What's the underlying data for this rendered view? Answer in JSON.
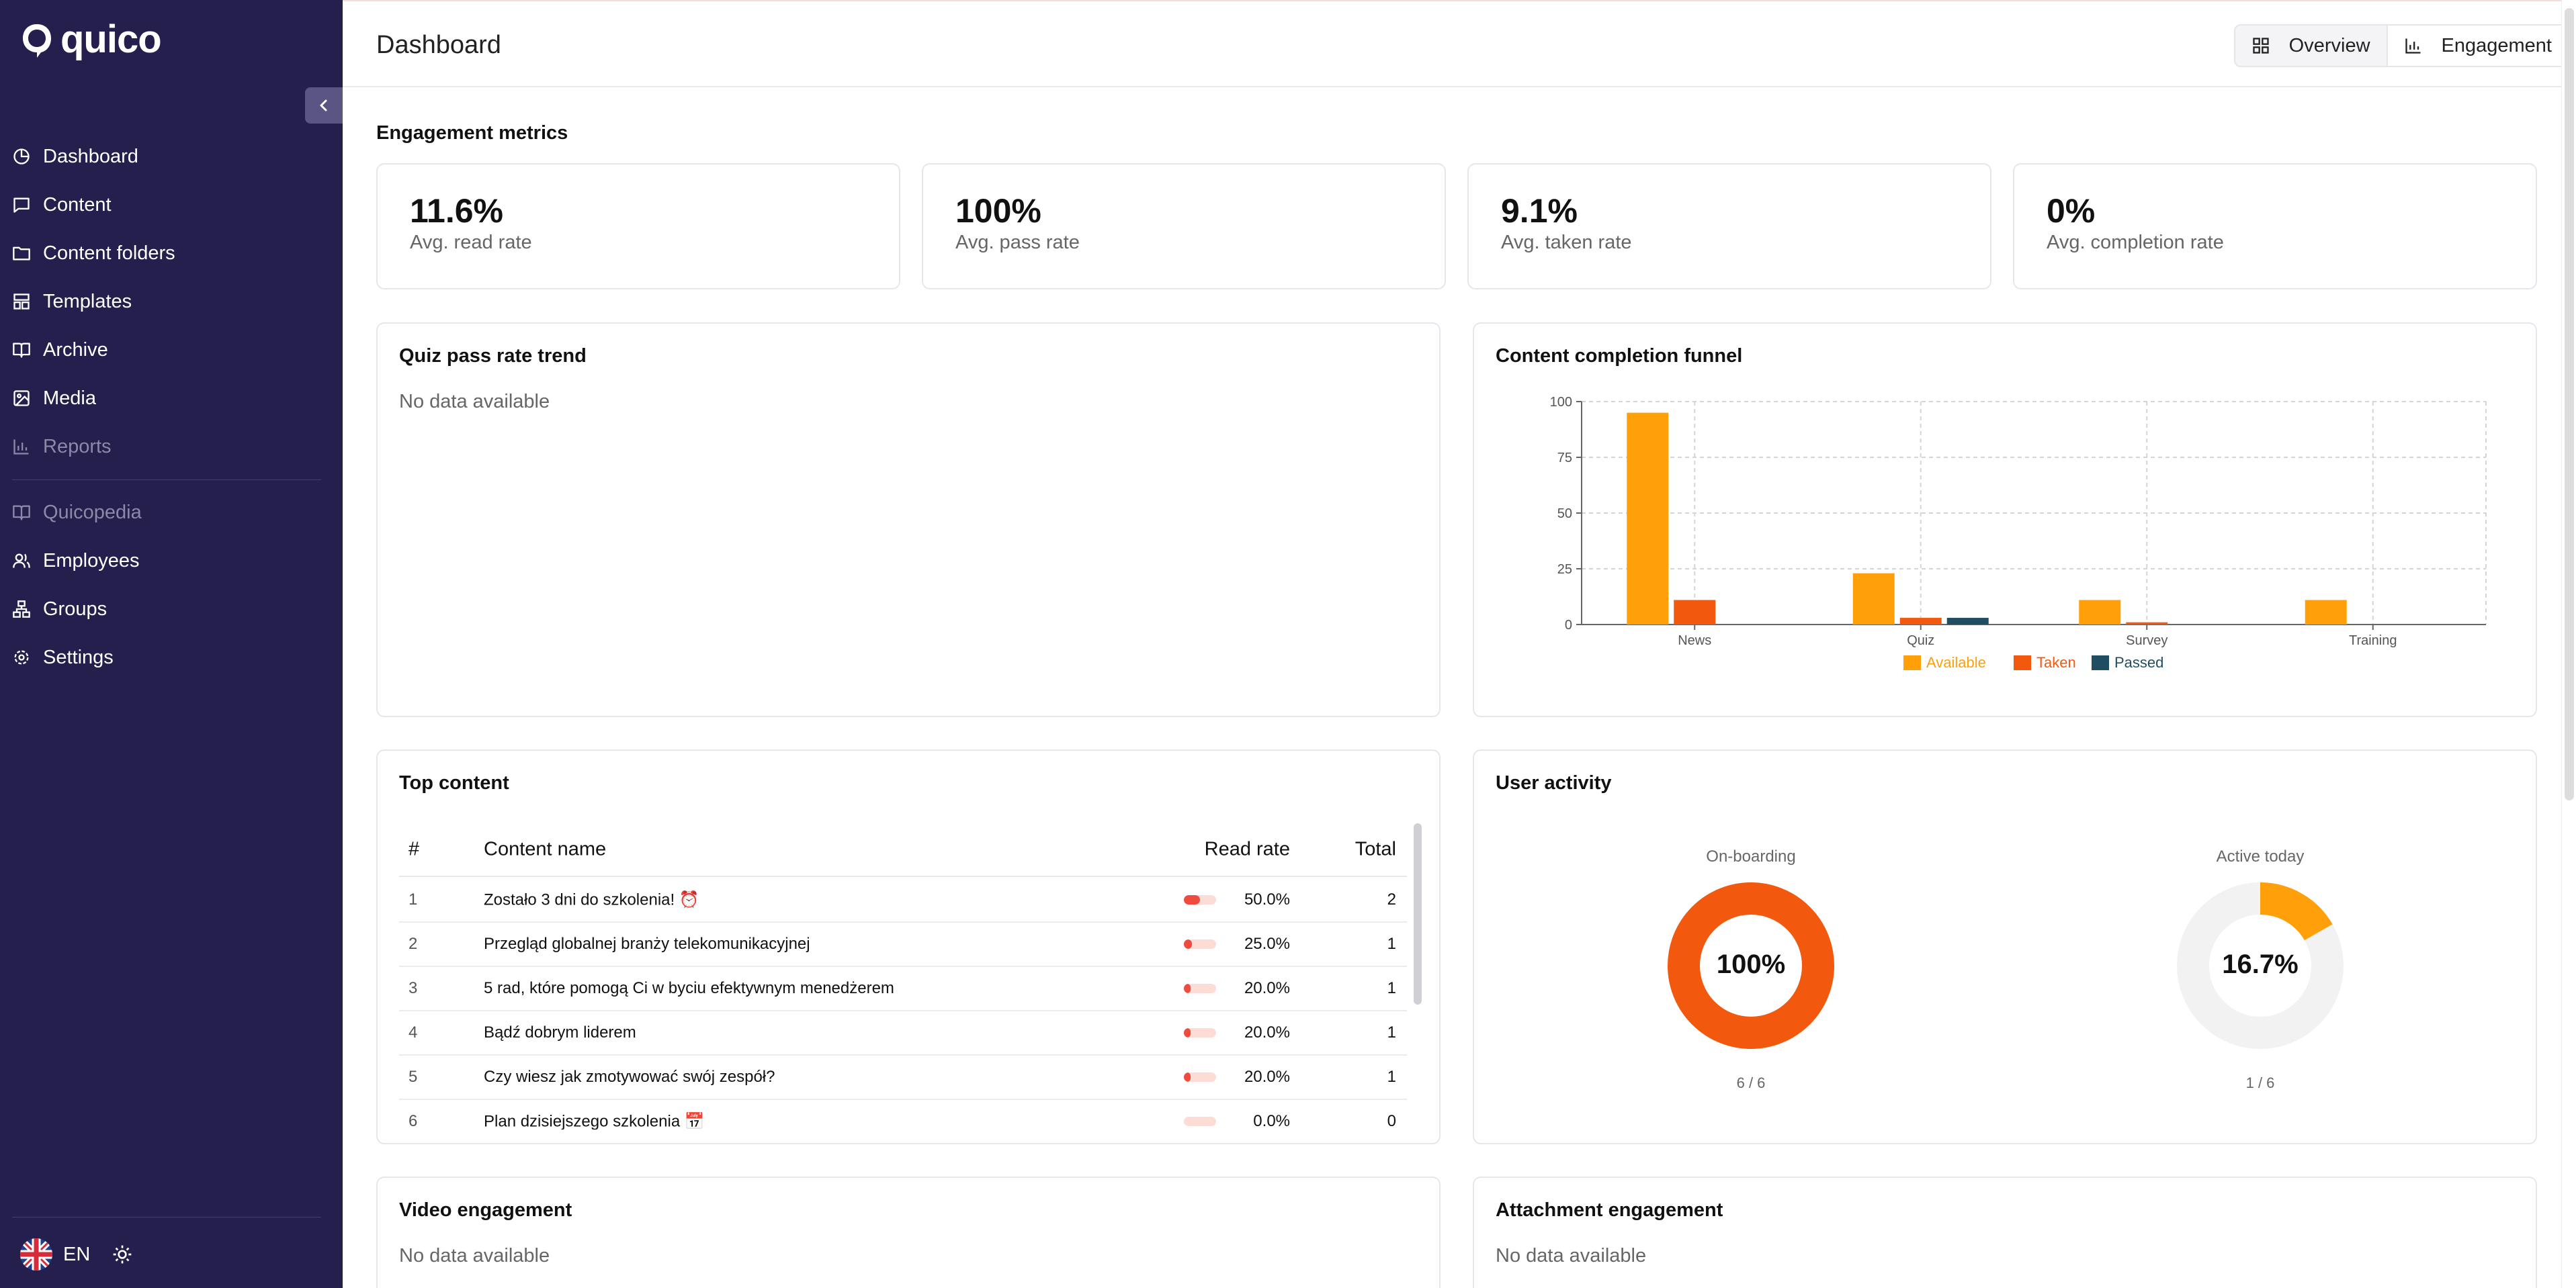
{
  "app": {
    "name": "quico"
  },
  "sidebar": {
    "items": [
      {
        "label": "Dashboard",
        "icon": "dashboard-icon"
      },
      {
        "label": "Content",
        "icon": "message-icon"
      },
      {
        "label": "Content folders",
        "icon": "folder-icon"
      },
      {
        "label": "Templates",
        "icon": "template-icon"
      },
      {
        "label": "Archive",
        "icon": "book-icon"
      },
      {
        "label": "Media",
        "icon": "image-icon"
      },
      {
        "label": "Reports",
        "icon": "bar-chart-icon",
        "disabled": true
      },
      {
        "label": "Quicopedia",
        "icon": "book-open-icon",
        "disabled": true
      },
      {
        "label": "Employees",
        "icon": "users-icon"
      },
      {
        "label": "Groups",
        "icon": "network-icon"
      },
      {
        "label": "Settings",
        "icon": "gear-icon"
      }
    ],
    "language": "EN"
  },
  "header": {
    "title": "Dashboard",
    "views": [
      {
        "label": "Overview",
        "icon": "grid-icon",
        "active": true
      },
      {
        "label": "Engagement",
        "icon": "bar-chart-icon",
        "active": false
      }
    ]
  },
  "engagement": {
    "section_title": "Engagement metrics",
    "metrics": [
      {
        "value": "11.6%",
        "label": "Avg. read rate"
      },
      {
        "value": "100%",
        "label": "Avg. pass rate"
      },
      {
        "value": "9.1%",
        "label": "Avg. taken rate"
      },
      {
        "value": "0%",
        "label": "Avg. completion rate"
      }
    ]
  },
  "quiz_trend": {
    "title": "Quiz pass rate trend",
    "empty": "No data available"
  },
  "funnel": {
    "title": "Content completion funnel",
    "colors": {
      "Available": "#ff9f0a",
      "Taken": "#f2590f",
      "Passed": "#1f4e63"
    }
  },
  "chart_data": {
    "type": "bar",
    "categories": [
      "News",
      "Quiz",
      "Survey",
      "Training"
    ],
    "series": [
      {
        "name": "Available",
        "values": [
          95,
          23,
          11,
          11
        ]
      },
      {
        "name": "Taken",
        "values": [
          11,
          3,
          1,
          0
        ]
      },
      {
        "name": "Passed",
        "values": [
          0,
          3,
          0,
          0
        ]
      }
    ],
    "ylim": [
      0,
      100
    ],
    "yticks": [
      "0",
      "25",
      "50",
      "75",
      "100"
    ],
    "grid": true,
    "legend": "bottom"
  },
  "top_content": {
    "title": "Top content",
    "columns": {
      "num": "#",
      "name": "Content name",
      "rate": "Read rate",
      "total": "Total"
    },
    "rows": [
      {
        "num": "1",
        "name": "Zostało 3 dni do szkolenia! ⏰",
        "rate": "50.0%",
        "fill": 0.5,
        "total": "2"
      },
      {
        "num": "2",
        "name": "Przegląd globalnej branży telekomunikacyjnej",
        "rate": "25.0%",
        "fill": 0.25,
        "total": "1"
      },
      {
        "num": "3",
        "name": "5 rad, które pomogą Ci w byciu efektywnym menedżerem",
        "rate": "20.0%",
        "fill": 0.2,
        "total": "1"
      },
      {
        "num": "4",
        "name": "Bądź dobrym liderem",
        "rate": "20.0%",
        "fill": 0.2,
        "total": "1"
      },
      {
        "num": "5",
        "name": "Czy wiesz jak zmotywować swój zespół?",
        "rate": "20.0%",
        "fill": 0.2,
        "total": "1"
      },
      {
        "num": "6",
        "name": "Plan dzisiejszego szkolenia 📅",
        "rate": "0.0%",
        "fill": 0,
        "total": "0"
      }
    ]
  },
  "user_activity": {
    "title": "User activity",
    "onboarding": {
      "label": "On-boarding",
      "percent": "100%",
      "ratio": "6 / 6",
      "fraction": 1.0,
      "color": "#f2590f"
    },
    "active_today": {
      "label": "Active today",
      "percent": "16.7%",
      "ratio": "1 / 6",
      "fraction": 0.167,
      "color": "#ff9f0a"
    }
  },
  "video": {
    "title": "Video engagement",
    "empty": "No data available"
  },
  "attachment": {
    "title": "Attachment engagement",
    "empty": "No data available"
  }
}
